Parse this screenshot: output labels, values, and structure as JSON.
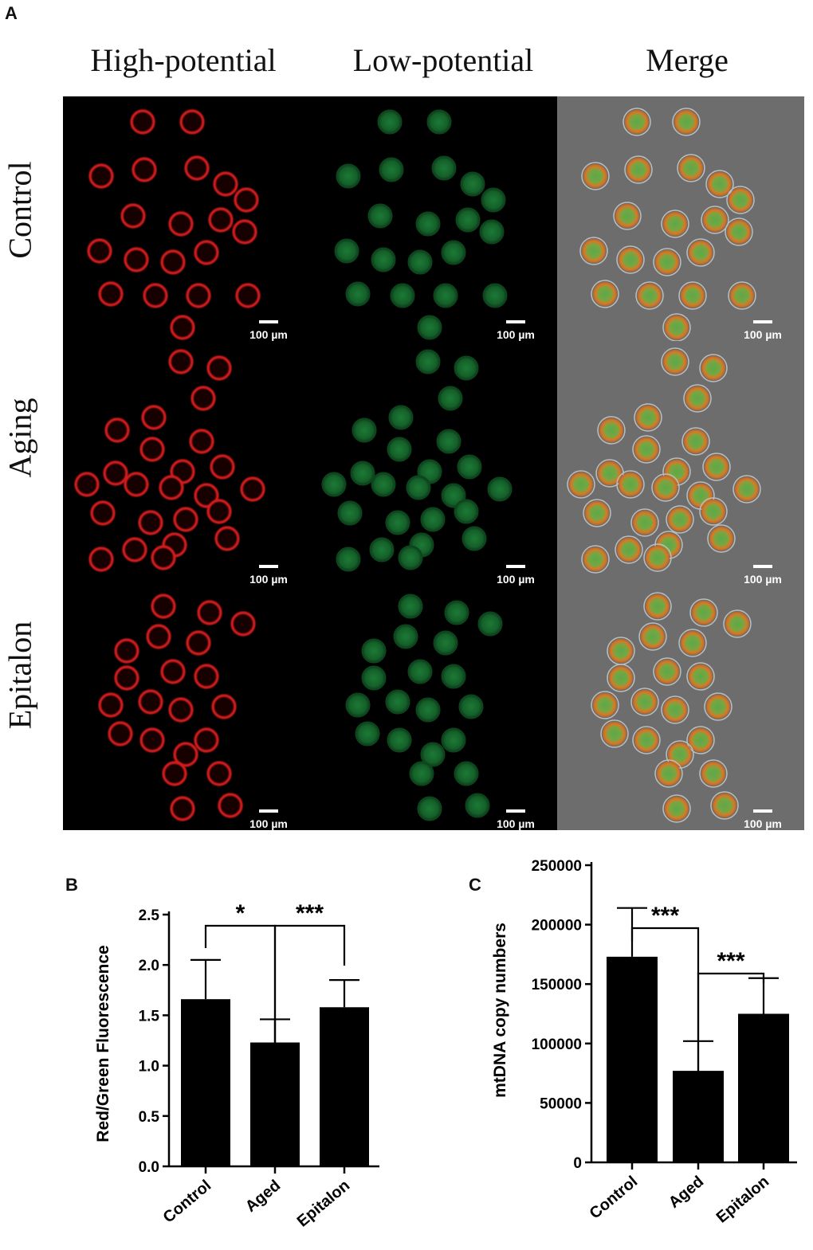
{
  "figure": {
    "panel_a_label": "A",
    "panel_b_label": "B",
    "panel_c_label": "C",
    "columns": [
      "High-potential",
      "Low-potential",
      "Merge"
    ],
    "rows": [
      "Control",
      "Aging",
      "Epitalon"
    ],
    "scale_bar_label": "100 µm",
    "colors": {
      "red_channel": "#d11a1f",
      "green_channel": "#1f9a3c",
      "merge_bg": "#6d6d6d",
      "bar": "#000000"
    }
  },
  "chart_data": [
    {
      "type": "bar",
      "panel": "B",
      "categories": [
        "Control",
        "Aged",
        "Epitalon"
      ],
      "values": [
        1.66,
        1.23,
        1.58
      ],
      "errors": [
        0.39,
        0.23,
        0.27
      ],
      "ylabel": "Red/Green Fluorescence",
      "xlabel": "",
      "ylim": [
        0,
        2.5
      ],
      "yticks": [
        "0.0",
        "0.5",
        "1.0",
        "1.5",
        "2.0",
        "2.5"
      ],
      "comparisons": [
        {
          "from": "Control",
          "to": "Aged",
          "label": "*"
        },
        {
          "from": "Aged",
          "to": "Epitalon",
          "label": "***"
        }
      ]
    },
    {
      "type": "bar",
      "panel": "C",
      "categories": [
        "Control",
        "Aged",
        "Epitalon"
      ],
      "values": [
        173000,
        77000,
        125000
      ],
      "errors": [
        41000,
        25000,
        30000
      ],
      "ylabel": "mtDNA copy numbers",
      "xlabel": "",
      "ylim": [
        0,
        250000
      ],
      "yticks": [
        "0",
        "50000",
        "100000",
        "150000",
        "200000",
        "250000"
      ],
      "comparisons": [
        {
          "from": "Control",
          "to": "Aged",
          "label": "***"
        },
        {
          "from": "Aged",
          "to": "Epitalon",
          "label": "***"
        }
      ]
    }
  ]
}
